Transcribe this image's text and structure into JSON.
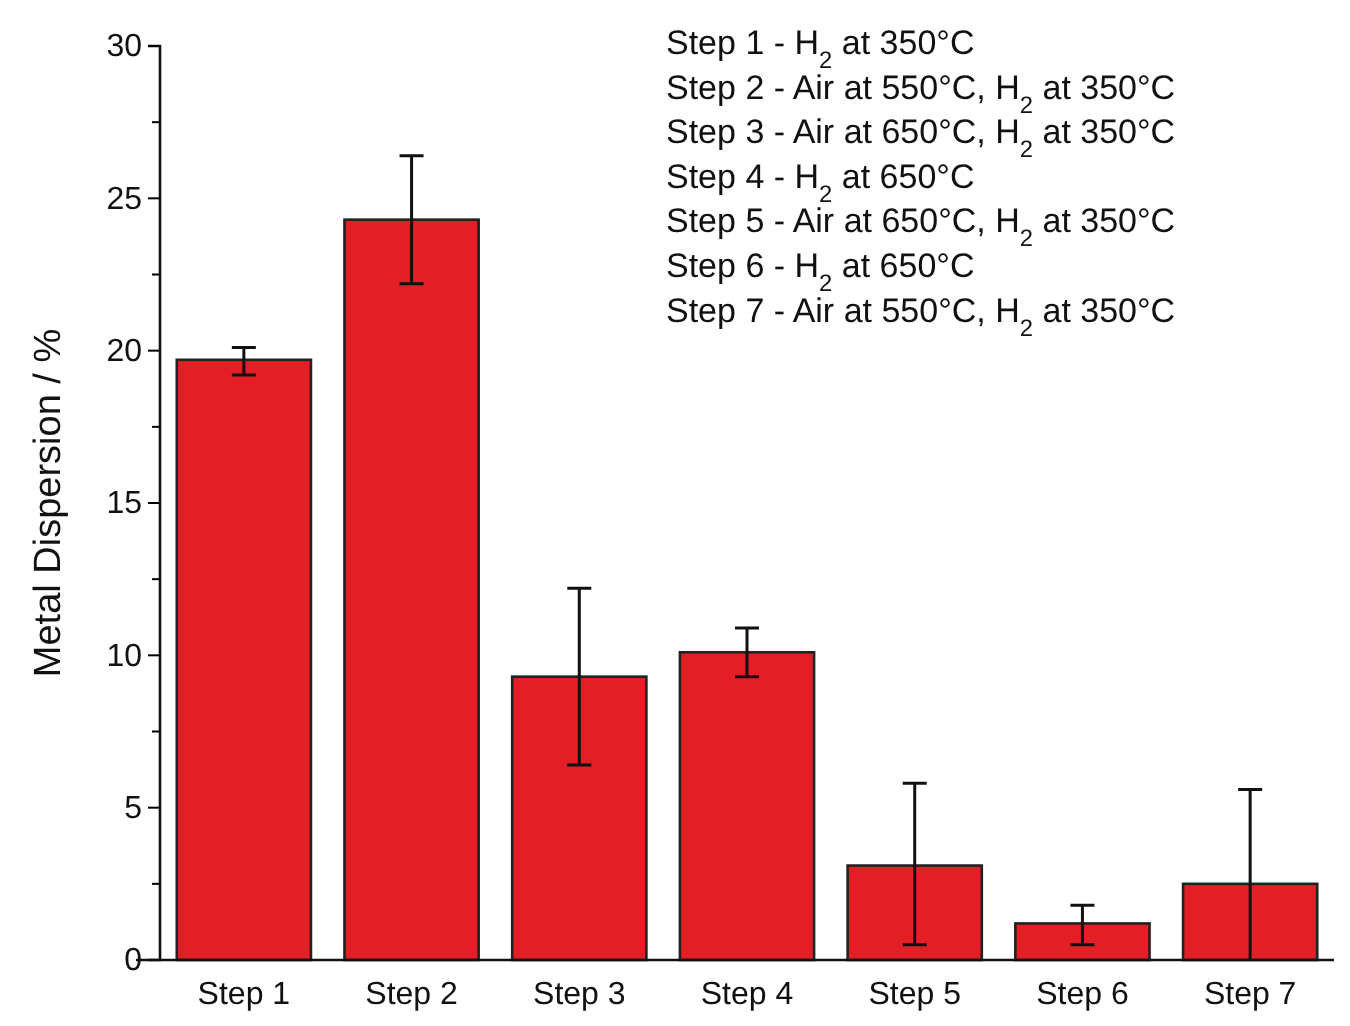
{
  "chart_data": {
    "type": "bar",
    "ylabel": "Metal Dispersion / %",
    "categories": [
      "Step 1",
      "Step 2",
      "Step 3",
      "Step 4",
      "Step 5",
      "Step 6",
      "Step 7"
    ],
    "values": [
      19.7,
      24.3,
      9.3,
      10.1,
      3.1,
      1.2,
      2.5
    ],
    "errors": [
      [
        19.2,
        20.1
      ],
      [
        22.2,
        26.4
      ],
      [
        6.4,
        12.2
      ],
      [
        9.3,
        10.9
      ],
      [
        0.5,
        5.8
      ],
      [
        0.5,
        1.8
      ],
      [
        0,
        5.6
      ]
    ],
    "color": "#e31e24",
    "ylim": [
      0,
      30
    ],
    "yticks": [
      0,
      {
        "value": 2.5,
        "label": null
      },
      5,
      {
        "value": 7.5,
        "label": null
      },
      10,
      {
        "value": 12.5,
        "label": null
      },
      15,
      {
        "value": 17.5,
        "label": null
      },
      20,
      {
        "value": 22.5,
        "label": null
      },
      25,
      {
        "value": 27.5,
        "label": null
      },
      30
    ],
    "annotations": [
      "Step 1 - H$_{2}$ at 350°C",
      "Step 2 - Air at 550°C, H$_{2}$ at 350°C",
      "Step 3 - Air at 650°C, H$_{2}$ at 350°C",
      "Step 4 - H$_{2}$ at 650°C",
      "Step 5 - Air at 650°C, H$_{2}$ at 350°C",
      "Step 6 - H$_{2}$ at 650°C",
      "Step 7 - Air at 550°C, H$_{2}$ at 350°C"
    ],
    "grid": false
  }
}
